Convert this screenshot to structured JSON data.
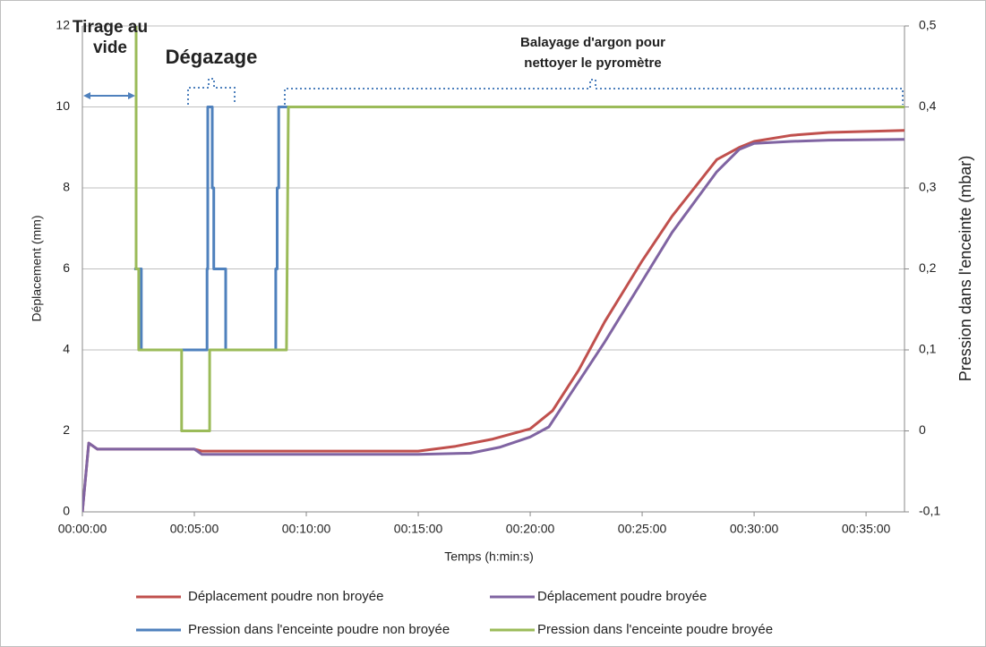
{
  "chart_data": {
    "type": "line",
    "x_label": "Temps (h:min:s)",
    "y_label": "Déplacement (mm)",
    "y2_label": "Pression dans l'enceinte (mbar)",
    "xlim": [
      0,
      2203
    ],
    "ylim": [
      0,
      12
    ],
    "y2lim": [
      -0.1,
      0.5
    ],
    "xticks": [
      {
        "value": 0,
        "label": "00:00:00"
      },
      {
        "value": 300,
        "label": "00:05:00"
      },
      {
        "value": 600,
        "label": "00:10:00"
      },
      {
        "value": 900,
        "label": "00:15:00"
      },
      {
        "value": 1200,
        "label": "00:20:00"
      },
      {
        "value": 1500,
        "label": "00:25:00"
      },
      {
        "value": 1800,
        "label": "00:30:00"
      },
      {
        "value": 2100,
        "label": "00:35:00"
      }
    ],
    "yticks": [
      0,
      2,
      4,
      6,
      8,
      10,
      12
    ],
    "y2ticks": [
      {
        "value": -0.1,
        "label": "-0,1"
      },
      0,
      {
        "value": 0.1,
        "label": "0,1"
      },
      {
        "value": 0.2,
        "label": "0,2"
      },
      {
        "value": 0.3,
        "label": "0,3"
      },
      {
        "value": 0.4,
        "label": "0,4"
      },
      {
        "value": 0.5,
        "label": "0,5"
      }
    ],
    "grid": true,
    "legend": "bottom",
    "series": [
      {
        "name": "Déplacement poudre non broyée",
        "color": "#c0504d",
        "x": [
          0,
          17,
          40,
          300,
          320,
          900,
          1000,
          1100,
          1200,
          1260,
          1330,
          1400,
          1460,
          1500,
          1580,
          1700,
          1760,
          1800,
          1900,
          2000,
          2203
        ],
        "values": [
          0,
          1.7,
          1.55,
          1.55,
          1.5,
          1.5,
          1.62,
          1.8,
          2.05,
          2.5,
          3.5,
          4.7,
          5.6,
          6.2,
          7.3,
          8.7,
          9.0,
          9.15,
          9.3,
          9.37,
          9.42
        ]
      },
      {
        "name": "Déplacement poudre broyée",
        "color": "#8064a2",
        "x": [
          0,
          17,
          40,
          300,
          320,
          900,
          1040,
          1120,
          1200,
          1250,
          1300,
          1350,
          1400,
          1460,
          1500,
          1580,
          1700,
          1760,
          1800,
          1900,
          2000,
          2203
        ],
        "values": [
          0,
          1.7,
          1.55,
          1.55,
          1.42,
          1.42,
          1.45,
          1.6,
          1.85,
          2.1,
          2.8,
          3.5,
          4.2,
          5.1,
          5.7,
          6.9,
          8.4,
          8.95,
          9.1,
          9.15,
          9.18,
          9.2
        ]
      },
      {
        "name": "Pression dans l'enceinte poudre non broyée",
        "color": "#4f81bd",
        "axis": "y2",
        "x": [
          139,
          158,
          158,
          334,
          334,
          336,
          336,
          348,
          348,
          352,
          352,
          384,
          384,
          518,
          518,
          522,
          522,
          526,
          526,
          2203
        ],
        "values": [
          0.2,
          0.2,
          0.1,
          0.1,
          0.2,
          0.2,
          0.4,
          0.4,
          0.3,
          0.3,
          0.2,
          0.2,
          0.1,
          0.1,
          0.2,
          0.2,
          0.3,
          0.3,
          0.4,
          0.4
        ]
      },
      {
        "name": "Pression dans l'enceinte poudre broyée",
        "color": "#9bbb59",
        "axis": "y2",
        "x": [
          144,
          144,
          151,
          151,
          266,
          266,
          341,
          341,
          547,
          552,
          2203
        ],
        "values": [
          0.6,
          0.2,
          0.2,
          0.1,
          0.1,
          0,
          0,
          0.1,
          0.1,
          0.4,
          0.4
        ]
      }
    ],
    "annotations": [
      {
        "text": [
          "Tirage au",
          "vide"
        ]
      },
      {
        "text": [
          "Dégazage"
        ]
      },
      {
        "text": [
          "Balayage d'argon pour",
          "nettoyer le pyromètre"
        ]
      }
    ]
  }
}
